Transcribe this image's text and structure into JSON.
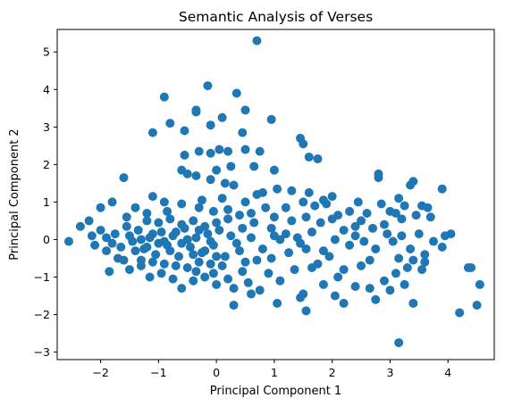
{
  "chart_data": {
    "type": "scatter",
    "title": "Semantic Analysis of Verses",
    "xlabel": "Principal Component 1",
    "ylabel": "Principal Component 2",
    "xlim": [
      -2.75,
      4.8
    ],
    "ylim": [
      -3.2,
      5.6
    ],
    "xticks": [
      -2,
      -1,
      0,
      1,
      2,
      3,
      4
    ],
    "yticks": [
      -3,
      -2,
      -1,
      0,
      1,
      2,
      3,
      4,
      5
    ],
    "xtick_labels": [
      "−2",
      "−1",
      "0",
      "1",
      "2",
      "3",
      "4"
    ],
    "ytick_labels": [
      "−3",
      "−2",
      "−1",
      "0",
      "1",
      "2",
      "3",
      "4",
      "5"
    ],
    "grid": false,
    "legend": "none",
    "colors": {
      "points": "#1f77b4",
      "axes": "#000000",
      "background": "#ffffff"
    },
    "points": [
      [
        0.7,
        5.3
      ],
      [
        -0.15,
        4.1
      ],
      [
        -0.9,
        3.8
      ],
      [
        0.35,
        3.9
      ],
      [
        -0.35,
        3.45
      ],
      [
        -0.35,
        3.4
      ],
      [
        0.5,
        3.45
      ],
      [
        -0.8,
        3.1
      ],
      [
        0.1,
        3.25
      ],
      [
        -1.1,
        2.85
      ],
      [
        -0.55,
        2.9
      ],
      [
        -0.1,
        3.05
      ],
      [
        0.45,
        2.85
      ],
      [
        0.95,
        3.2
      ],
      [
        0.2,
        2.35
      ],
      [
        0.05,
        2.4
      ],
      [
        -0.3,
        2.35
      ],
      [
        -0.1,
        2.3
      ],
      [
        0.5,
        2.4
      ],
      [
        0.75,
        2.35
      ],
      [
        1.0,
        1.85
      ],
      [
        1.45,
        2.7
      ],
      [
        1.5,
        2.55
      ],
      [
        1.6,
        2.2
      ],
      [
        1.75,
        2.15
      ],
      [
        0.65,
        1.95
      ],
      [
        0.25,
        1.95
      ],
      [
        -0.55,
        2.25
      ],
      [
        -0.6,
        1.85
      ],
      [
        -0.5,
        1.75
      ],
      [
        -0.35,
        1.7
      ],
      [
        -0.1,
        1.6
      ],
      [
        0.0,
        1.85
      ],
      [
        0.15,
        1.5
      ],
      [
        0.3,
        1.45
      ],
      [
        0.7,
        1.2
      ],
      [
        0.8,
        1.25
      ],
      [
        1.05,
        1.35
      ],
      [
        1.3,
        1.3
      ],
      [
        1.5,
        1.0
      ],
      [
        1.6,
        1.25
      ],
      [
        1.85,
        1.05
      ],
      [
        1.9,
        0.95
      ],
      [
        2.0,
        1.15
      ],
      [
        2.45,
        1.0
      ],
      [
        2.8,
        1.75
      ],
      [
        2.8,
        1.65
      ],
      [
        3.4,
        1.55
      ],
      [
        3.35,
        1.45
      ],
      [
        3.9,
        1.35
      ],
      [
        3.15,
        1.1
      ],
      [
        3.55,
        0.9
      ],
      [
        3.65,
        0.85
      ],
      [
        3.25,
        0.9
      ],
      [
        3.45,
        0.65
      ],
      [
        3.0,
        0.75
      ],
      [
        3.1,
        0.7
      ],
      [
        2.6,
        0.7
      ],
      [
        2.5,
        0.5
      ],
      [
        2.1,
        0.65
      ],
      [
        2.0,
        0.55
      ],
      [
        1.55,
        0.6
      ],
      [
        1.3,
        0.5
      ],
      [
        1.0,
        0.6
      ],
      [
        0.85,
        0.85
      ],
      [
        0.6,
        0.7
      ],
      [
        0.4,
        0.65
      ],
      [
        0.2,
        0.8
      ],
      [
        -0.05,
        0.75
      ],
      [
        -0.3,
        0.85
      ],
      [
        -0.6,
        0.95
      ],
      [
        -0.9,
        1.0
      ],
      [
        -1.1,
        1.15
      ],
      [
        -1.4,
        0.85
      ],
      [
        -1.6,
        1.65
      ],
      [
        -1.8,
        1.0
      ],
      [
        -2.0,
        0.85
      ],
      [
        -2.2,
        0.5
      ],
      [
        -2.35,
        0.35
      ],
      [
        -2.55,
        -0.05
      ],
      [
        -2.1,
        -0.15
      ],
      [
        -1.9,
        -0.3
      ],
      [
        -1.85,
        -0.85
      ],
      [
        -1.7,
        -0.5
      ],
      [
        -1.5,
        -0.8
      ],
      [
        -1.3,
        -0.7
      ],
      [
        -1.15,
        -1.0
      ],
      [
        -0.95,
        -0.9
      ],
      [
        -0.75,
        -1.05
      ],
      [
        -0.6,
        -1.3
      ],
      [
        -0.4,
        -1.1
      ],
      [
        -0.2,
        -1.0
      ],
      [
        0.0,
        -1.2
      ],
      [
        0.2,
        -1.05
      ],
      [
        0.3,
        -1.3
      ],
      [
        0.3,
        -1.75
      ],
      [
        0.55,
        -1.15
      ],
      [
        0.6,
        -1.45
      ],
      [
        0.75,
        -1.35
      ],
      [
        1.05,
        -1.7
      ],
      [
        1.1,
        -1.1
      ],
      [
        1.5,
        -1.45
      ],
      [
        1.45,
        -1.55
      ],
      [
        1.55,
        -1.9
      ],
      [
        1.85,
        -1.2
      ],
      [
        2.05,
        -1.5
      ],
      [
        2.2,
        -1.7
      ],
      [
        2.4,
        -1.25
      ],
      [
        2.65,
        -1.3
      ],
      [
        2.75,
        -1.6
      ],
      [
        2.9,
        -1.1
      ],
      [
        3.0,
        -1.35
      ],
      [
        3.1,
        -0.9
      ],
      [
        3.25,
        -1.2
      ],
      [
        3.3,
        -0.75
      ],
      [
        3.4,
        -0.55
      ],
      [
        3.55,
        -0.8
      ],
      [
        3.6,
        -0.6
      ],
      [
        3.4,
        -1.7
      ],
      [
        3.15,
        -2.75
      ],
      [
        4.2,
        -1.95
      ],
      [
        4.35,
        -0.75
      ],
      [
        4.4,
        -0.75
      ],
      [
        4.5,
        -1.75
      ],
      [
        4.55,
        -1.2
      ],
      [
        3.95,
        0.1
      ],
      [
        3.6,
        -0.4
      ],
      [
        3.35,
        -0.25
      ],
      [
        3.2,
        0.1
      ],
      [
        2.95,
        0.15
      ],
      [
        2.7,
        0.3
      ],
      [
        2.4,
        0.1
      ],
      [
        2.3,
        -0.15
      ],
      [
        2.05,
        0.0
      ],
      [
        1.85,
        -0.3
      ],
      [
        1.65,
        0.2
      ],
      [
        1.45,
        -0.1
      ],
      [
        1.25,
        -0.35
      ],
      [
        1.1,
        0.0
      ],
      [
        0.95,
        -0.5
      ],
      [
        0.8,
        -0.25
      ],
      [
        0.6,
        0.05
      ],
      [
        0.5,
        -0.6
      ],
      [
        0.45,
        0.3
      ],
      [
        0.35,
        -0.1
      ],
      [
        0.25,
        0.1
      ],
      [
        0.15,
        -0.45
      ],
      [
        0.05,
        0.25
      ],
      [
        -0.05,
        -0.15
      ],
      [
        -0.15,
        0.15
      ],
      [
        -0.25,
        -0.35
      ],
      [
        -0.35,
        0.05
      ],
      [
        -0.45,
        -0.2
      ],
      [
        -0.55,
        0.3
      ],
      [
        -0.65,
        -0.45
      ],
      [
        -0.75,
        0.1
      ],
      [
        -0.85,
        -0.15
      ],
      [
        -0.95,
        0.2
      ],
      [
        -1.05,
        -0.4
      ],
      [
        -1.15,
        0.05
      ],
      [
        -1.25,
        -0.25
      ],
      [
        -1.35,
        0.25
      ],
      [
        -1.45,
        -0.05
      ],
      [
        -1.55,
        0.35
      ],
      [
        -1.65,
        -0.2
      ],
      [
        -1.75,
        0.15
      ],
      [
        -1.9,
        0.05
      ],
      [
        -2.0,
        0.25
      ],
      [
        -1.2,
        0.5
      ],
      [
        -1.0,
        0.45
      ],
      [
        -0.8,
        0.55
      ],
      [
        -0.6,
        0.4
      ],
      [
        -0.4,
        0.5
      ],
      [
        -0.2,
        0.35
      ],
      [
        0.0,
        0.45
      ],
      [
        0.2,
        0.55
      ],
      [
        -1.3,
        -0.55
      ],
      [
        -1.1,
        -0.6
      ],
      [
        -0.9,
        -0.65
      ],
      [
        -0.7,
        -0.7
      ],
      [
        -0.5,
        -0.75
      ],
      [
        -0.3,
        -0.6
      ],
      [
        -0.1,
        -0.65
      ],
      [
        0.1,
        -0.7
      ],
      [
        -1.4,
        -0.3
      ],
      [
        -1.2,
        -0.2
      ],
      [
        -1.0,
        -0.1
      ],
      [
        -0.8,
        -0.3
      ],
      [
        -0.6,
        -0.1
      ],
      [
        -0.4,
        -0.4
      ],
      [
        -0.2,
        -0.3
      ],
      [
        0.0,
        -0.45
      ],
      [
        -1.5,
        0.1
      ],
      [
        -1.3,
        0.0
      ],
      [
        -1.1,
        0.15
      ],
      [
        -0.9,
        -0.05
      ],
      [
        -0.7,
        0.2
      ],
      [
        -0.5,
        0.0
      ],
      [
        -0.3,
        0.25
      ],
      [
        -0.1,
        -0.05
      ],
      [
        2.4,
        0.35
      ],
      [
        2.9,
        0.4
      ],
      [
        3.05,
        -0.05
      ],
      [
        2.65,
        -0.55
      ],
      [
        2.2,
        -0.8
      ],
      [
        1.75,
        -0.65
      ],
      [
        1.35,
        -0.8
      ],
      [
        0.9,
        -0.9
      ],
      [
        1.8,
        0.45
      ],
      [
        2.55,
        -0.05
      ],
      [
        2.2,
        0.25
      ],
      [
        1.95,
        -0.45
      ],
      [
        1.55,
        -0.25
      ],
      [
        1.2,
        0.15
      ],
      [
        0.95,
        0.3
      ],
      [
        0.7,
        -0.55
      ],
      [
        0.45,
        -0.85
      ],
      [
        3.5,
        0.15
      ],
      [
        3.75,
        -0.05
      ],
      [
        3.9,
        -0.2
      ],
      [
        4.05,
        0.15
      ],
      [
        3.7,
        0.6
      ],
      [
        3.2,
        0.55
      ],
      [
        2.85,
        0.95
      ],
      [
        2.3,
        0.75
      ],
      [
        1.7,
        0.9
      ],
      [
        1.2,
        0.85
      ],
      [
        0.5,
        1.0
      ],
      [
        0.1,
        1.1
      ],
      [
        -0.25,
        1.05
      ],
      [
        -1.2,
        0.7
      ],
      [
        -1.55,
        0.6
      ],
      [
        -0.85,
        0.75
      ],
      [
        -1.6,
        -0.55
      ],
      [
        -1.8,
        -0.1
      ],
      [
        -2.15,
        0.1
      ],
      [
        -0.05,
        -0.9
      ],
      [
        -0.35,
        -0.85
      ],
      [
        0.4,
        -0.3
      ],
      [
        0.65,
        0.45
      ],
      [
        1.0,
        0.1
      ],
      [
        1.4,
        0.05
      ],
      [
        1.65,
        -0.75
      ],
      [
        2.1,
        -1.0
      ],
      [
        2.5,
        -0.7
      ],
      [
        2.75,
        -0.25
      ],
      [
        3.15,
        -0.5
      ]
    ]
  }
}
